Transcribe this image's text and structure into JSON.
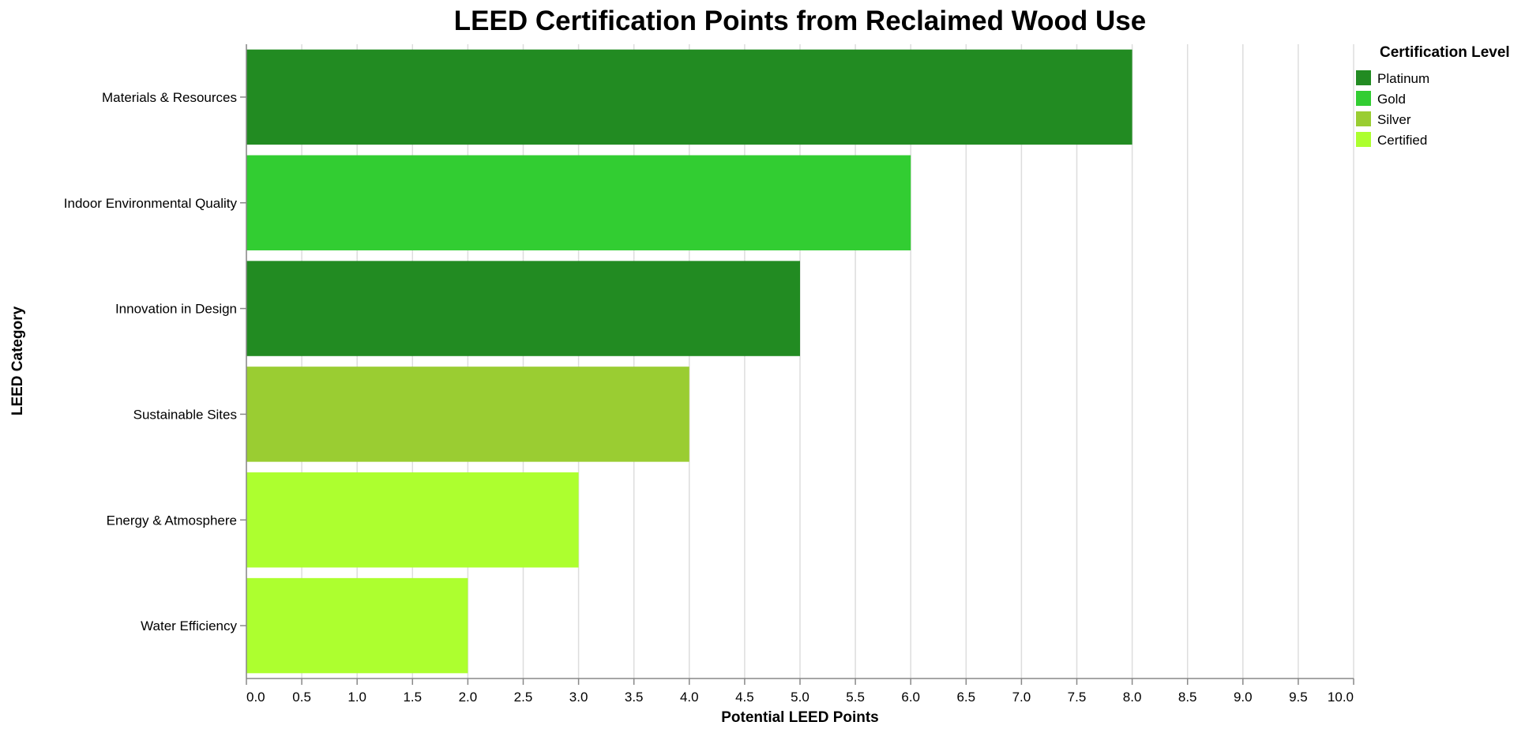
{
  "chart_data": {
    "type": "bar",
    "orientation": "horizontal",
    "title": "LEED Certification Points from Reclaimed Wood Use",
    "xlabel": "Potential LEED Points",
    "ylabel": "LEED Category",
    "xlim": [
      0,
      10
    ],
    "xticks": [
      "0.0",
      "0.5",
      "1.0",
      "1.5",
      "2.0",
      "2.5",
      "3.0",
      "3.5",
      "4.0",
      "4.5",
      "5.0",
      "5.5",
      "6.0",
      "6.5",
      "7.0",
      "7.5",
      "8.0",
      "8.5",
      "9.0",
      "9.5",
      "10.0"
    ],
    "grid": true,
    "categories": [
      "Materials & Resources",
      "Indoor Environmental Quality",
      "Innovation in Design",
      "Sustainable Sites",
      "Energy & Atmosphere",
      "Water Efficiency"
    ],
    "values": [
      8,
      6,
      5,
      4,
      3,
      2
    ],
    "levels": [
      "Platinum",
      "Gold",
      "Platinum",
      "Silver",
      "Certified",
      "Certified"
    ],
    "legend": {
      "title": "Certification Level",
      "placement": "top-right",
      "items": [
        {
          "label": "Platinum",
          "color": "#228b22"
        },
        {
          "label": "Gold",
          "color": "#32cd32"
        },
        {
          "label": "Silver",
          "color": "#9acd32"
        },
        {
          "label": "Certified",
          "color": "#adff2f"
        }
      ]
    }
  }
}
